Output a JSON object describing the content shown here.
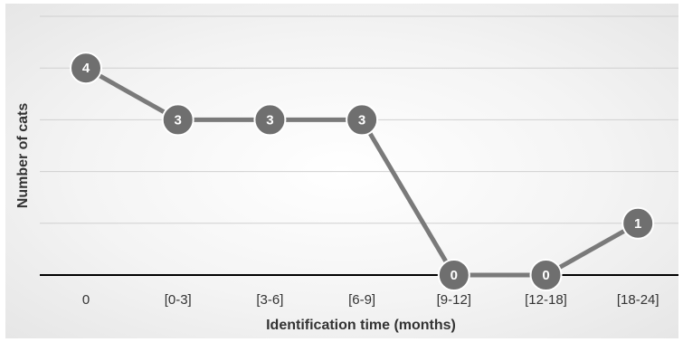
{
  "chart_data": {
    "type": "line",
    "title": "",
    "xlabel": "Identification time (months)",
    "ylabel": "Number of cats",
    "categories": [
      "0",
      "[0-3]",
      "[3-6]",
      "[6-9]",
      "[9-12]",
      "[12-18]",
      "[18-24]"
    ],
    "series": [
      {
        "values": [
          4,
          3,
          3,
          3,
          0,
          0,
          1
        ]
      }
    ],
    "ylim": [
      0,
      4.5
    ],
    "y_gridlines": [
      0,
      1,
      2,
      3,
      4,
      5
    ],
    "y_tick_labels_shown": false,
    "grid": true,
    "data_labels": true,
    "colors": {
      "line": "#7a7a7a",
      "marker": "#6f6f6f",
      "marker_border": "#ffffff",
      "gridline": "#d0d0d0",
      "baseline": "#000000",
      "label_text": "#ffffff"
    }
  }
}
